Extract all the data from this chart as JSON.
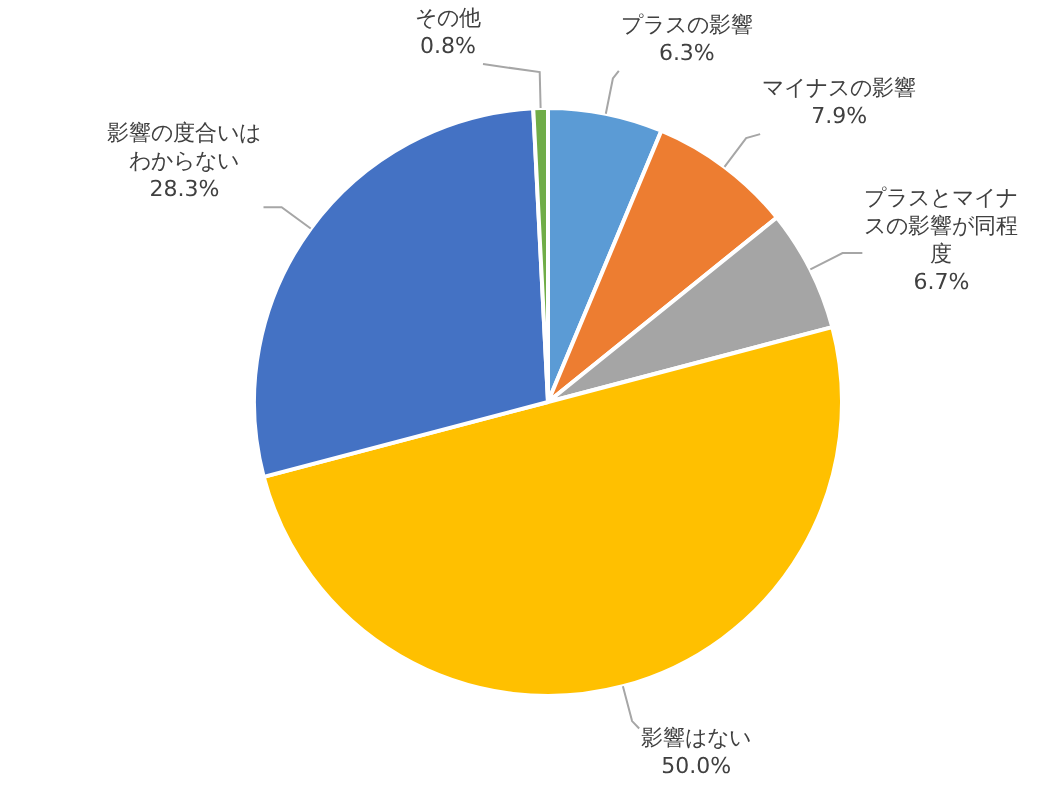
{
  "chart_data": {
    "type": "pie",
    "categories": [
      "プラスの影響",
      "マイナスの影響",
      "プラスとマイナスの影響が同程度",
      "影響はない",
      "影響の度合いはわからない",
      "その他"
    ],
    "values": [
      6.3,
      7.9,
      6.7,
      50.0,
      28.3,
      0.8
    ],
    "value_labels": [
      "6.3%",
      "7.9%",
      "6.7%",
      "50.0%",
      "28.3%",
      "0.8%"
    ],
    "colors": [
      "#5b9bd5",
      "#ed7d31",
      "#a5a5a5",
      "#ffc000",
      "#4472c4",
      "#70ad47"
    ],
    "legend": false
  }
}
